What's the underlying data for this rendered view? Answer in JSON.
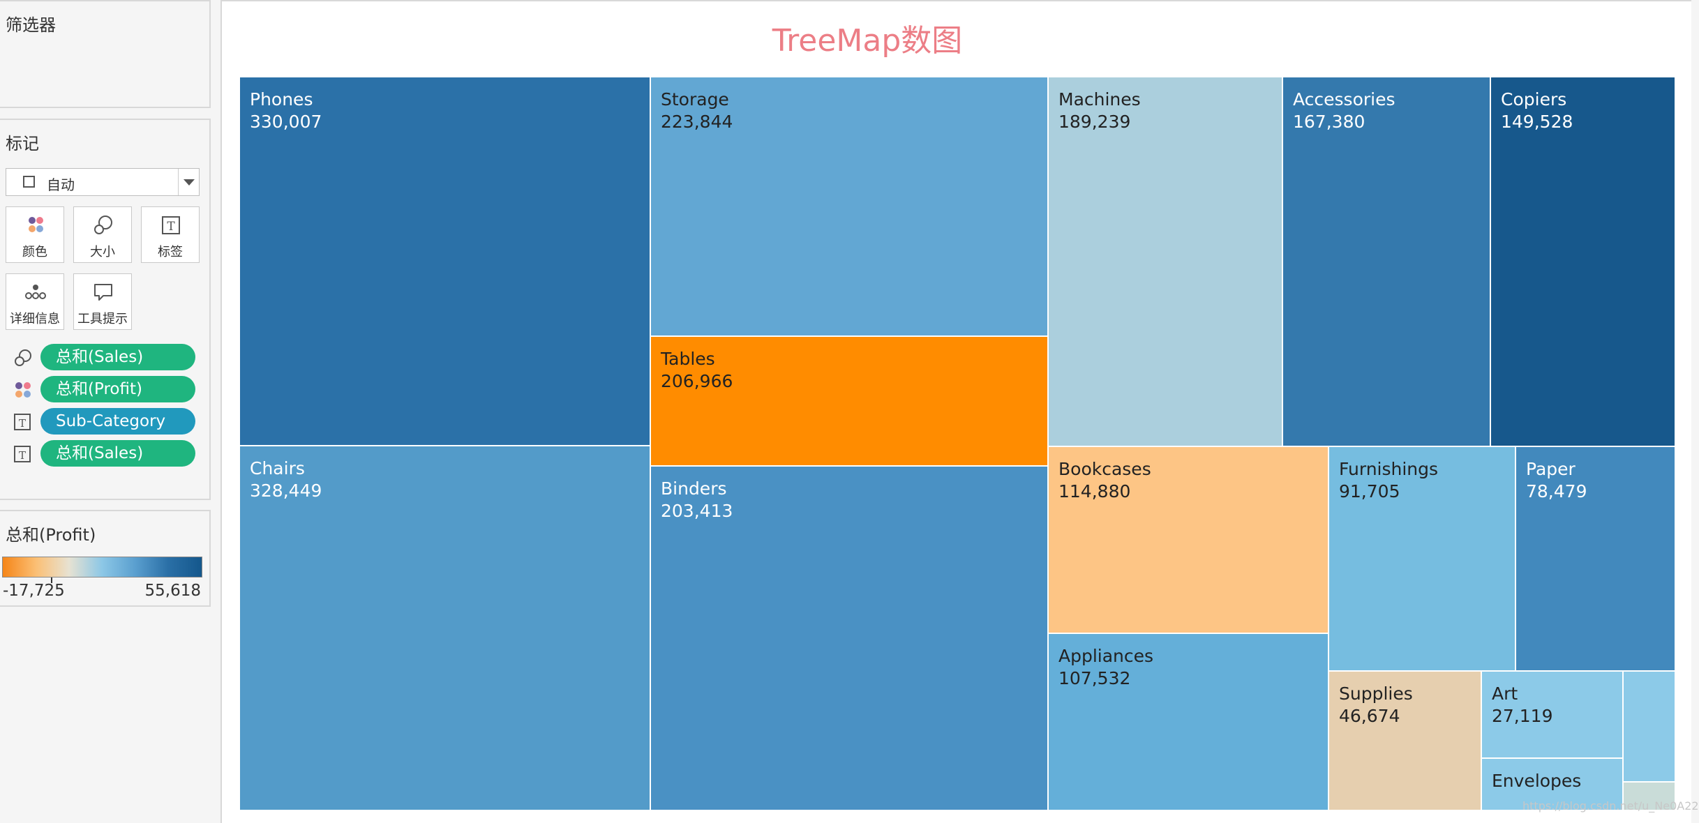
{
  "sidebar": {
    "filters_title": "筛选器",
    "marks_title": "标记",
    "mark_type": "自动",
    "buttons": [
      {
        "label": "颜色",
        "icon": "color-icon"
      },
      {
        "label": "大小",
        "icon": "size-icon"
      },
      {
        "label": "标签",
        "icon": "label-icon"
      },
      {
        "label": "详细信息",
        "icon": "detail-icon"
      },
      {
        "label": "工具提示",
        "icon": "tooltip-icon"
      }
    ],
    "pills": [
      {
        "label": "总和(Sales)",
        "icon": "size-icon",
        "color": "#1fb57f"
      },
      {
        "label": "总和(Profit)",
        "icon": "color-icon",
        "color": "#1fb57f"
      },
      {
        "label": "Sub-Category",
        "icon": "label-icon",
        "color": "#2199bd"
      },
      {
        "label": "总和(Sales)",
        "icon": "label-icon",
        "color": "#1fb57f"
      }
    ],
    "legend": {
      "title": "总和(Profit)",
      "min": "-17,725",
      "max": "55,618",
      "colors": [
        "#f58518",
        "#fbbf74",
        "#e7e2d2",
        "#8cc7e6",
        "#5a9fcf",
        "#2a6fa6",
        "#14578c"
      ]
    }
  },
  "watermark": "https://blog.csdn.net/u_Ne0A22",
  "chart_data": {
    "type": "treemap",
    "title": "TreeMap数图",
    "size_measure": "总和(Sales)",
    "color_measure": "总和(Profit)",
    "items": [
      {
        "label": "Phones",
        "value": 330007,
        "value_text": "330,007",
        "color": "#2b71a8",
        "text_color": "#ffffff"
      },
      {
        "label": "Chairs",
        "value": 328449,
        "value_text": "328,449",
        "color": "#539bc9",
        "text_color": "#ffffff"
      },
      {
        "label": "Storage",
        "value": 223844,
        "value_text": "223,844",
        "color": "#62a7d3",
        "text_color": "#222222"
      },
      {
        "label": "Tables",
        "value": 206966,
        "value_text": "206,966",
        "color": "#ff8c00",
        "text_color": "#222222"
      },
      {
        "label": "Binders",
        "value": 203413,
        "value_text": "203,413",
        "color": "#4a91c4",
        "text_color": "#ffffff"
      },
      {
        "label": "Machines",
        "value": 189239,
        "value_text": "189,239",
        "color": "#abcfdd",
        "text_color": "#222222"
      },
      {
        "label": "Accessories",
        "value": 167380,
        "value_text": "167,380",
        "color": "#3479ad",
        "text_color": "#ffffff"
      },
      {
        "label": "Copiers",
        "value": 149528,
        "value_text": "149,528",
        "color": "#17588c",
        "text_color": "#ffffff"
      },
      {
        "label": "Bookcases",
        "value": 114880,
        "value_text": "114,880",
        "color": "#fdc585",
        "text_color": "#222222"
      },
      {
        "label": "Appliances",
        "value": 107532,
        "value_text": "107,532",
        "color": "#64afd9",
        "text_color": "#222222"
      },
      {
        "label": "Furnishings",
        "value": 91705,
        "value_text": "91,705",
        "color": "#76bde0",
        "text_color": "#222222"
      },
      {
        "label": "Paper",
        "value": 78479,
        "value_text": "78,479",
        "color": "#4289bd",
        "text_color": "#ffffff"
      },
      {
        "label": "Supplies",
        "value": 46674,
        "value_text": "46,674",
        "color": "#e6cfaf",
        "text_color": "#222222"
      },
      {
        "label": "Art",
        "value": 27119,
        "value_text": "27,119",
        "color": "#8ccae8",
        "text_color": "#222222"
      },
      {
        "label": "Envelopes",
        "value": null,
        "value_text": "",
        "color": "#8ccae8",
        "text_color": "#222222"
      },
      {
        "label": "",
        "value": null,
        "value_text": "",
        "color": "#8ccae8",
        "text_color": "#222222"
      },
      {
        "label": "",
        "value": null,
        "value_text": "",
        "color": "#c9dcd8",
        "text_color": "#222222"
      }
    ]
  }
}
